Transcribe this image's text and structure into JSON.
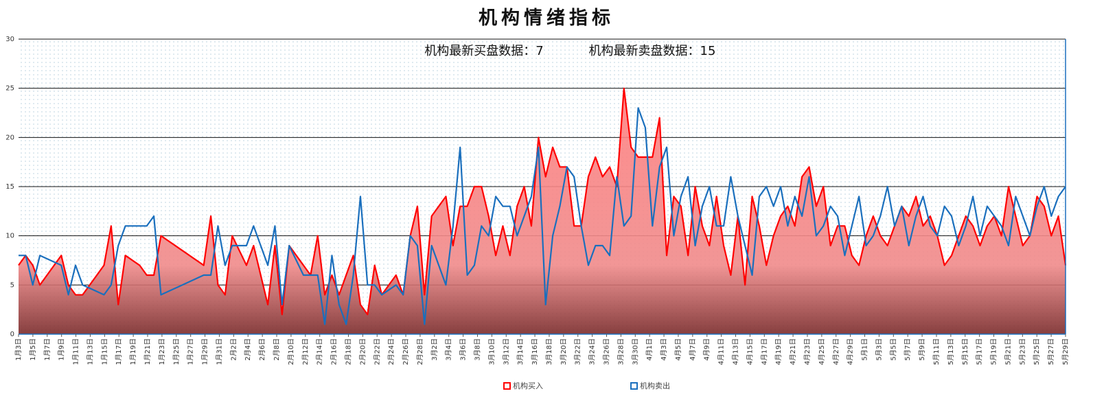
{
  "chart_data": {
    "type": "area",
    "title": "机构情绪指标",
    "annotation_buy": "机构最新买盘数据：7",
    "annotation_sell": "机构最新卖盘数据：15",
    "ylim": [
      0,
      30
    ],
    "yticks": [
      0,
      5,
      10,
      15,
      20,
      25,
      30
    ],
    "grid": true,
    "legend_position": "bottom",
    "x_tick_labels": [
      "1月3日",
      "1月5日",
      "1月7日",
      "1月9日",
      "1月11日",
      "1月13日",
      "1月15日",
      "1月17日",
      "1月19日",
      "1月21日",
      "1月23日",
      "1月25日",
      "1月27日",
      "1月29日",
      "1月31日",
      "2月2日",
      "2月4日",
      "2月6日",
      "2月8日",
      "2月10日",
      "2月12日",
      "2月14日",
      "2月16日",
      "2月18日",
      "2月20日",
      "2月22日",
      "2月24日",
      "2月26日",
      "2月28日",
      "3月2日",
      "3月4日",
      "3月6日",
      "3月8日",
      "3月10日",
      "3月12日",
      "3月14日",
      "3月16日",
      "3月18日",
      "3月20日",
      "3月22日",
      "3月24日",
      "3月26日",
      "3月28日",
      "3月30日",
      "4月1日",
      "4月3日",
      "4月5日",
      "4月7日",
      "4月9日",
      "4月11日",
      "4月13日",
      "4月15日",
      "4月17日",
      "4月19日",
      "4月21日",
      "4月23日",
      "4月25日",
      "4月27日",
      "4月29日",
      "5月1日",
      "5月3日",
      "5月5日",
      "5月7日",
      "5月9日",
      "5月11日",
      "5月13日",
      "5月15日",
      "5月17日",
      "5月19日",
      "5月21日",
      "5月23日",
      "5月25日",
      "5月27日",
      "5月29日"
    ],
    "x": [
      0,
      1,
      2,
      3,
      6,
      7,
      8,
      9,
      12,
      13,
      14,
      15,
      17,
      18,
      19,
      20,
      26,
      27,
      28,
      29,
      30,
      32,
      33,
      35,
      36,
      37,
      38,
      40,
      41,
      42,
      43,
      44,
      45,
      46,
      47,
      48,
      49,
      50,
      51,
      53,
      54,
      55,
      56,
      57,
      58,
      60,
      61,
      62,
      63,
      64,
      65,
      66,
      67,
      68,
      69,
      70,
      71,
      72,
      73,
      74,
      75,
      76,
      77,
      78,
      79,
      80,
      81,
      82,
      83,
      84,
      85,
      86,
      87,
      88,
      89,
      90,
      91,
      92,
      93,
      94,
      95,
      96,
      97,
      98,
      99,
      100,
      101,
      102,
      103,
      104,
      105,
      106,
      107,
      108,
      109,
      110,
      111,
      112,
      113,
      114,
      115,
      116,
      117,
      118,
      119,
      120,
      121,
      122,
      123,
      124,
      125,
      126,
      127,
      128,
      129,
      130,
      131,
      132,
      133,
      134,
      135,
      136,
      137,
      138,
      139,
      140,
      141,
      142,
      143,
      144,
      145,
      146,
      147
    ],
    "series": [
      {
        "name": "机构买入",
        "color": "#ff0000",
        "fill": "#ff8080",
        "values": [
          7,
          8,
          7,
          5,
          8,
          5,
          4,
          4,
          7,
          11,
          3,
          8,
          7,
          6,
          6,
          10,
          7,
          12,
          5,
          4,
          10,
          7,
          9,
          3,
          9,
          2,
          9,
          7,
          6,
          10,
          4,
          6,
          4,
          6,
          8,
          3,
          2,
          7,
          4,
          6,
          4,
          10,
          13,
          4,
          12,
          14,
          9,
          13,
          13,
          15,
          15,
          12,
          8,
          11,
          8,
          13,
          15,
          11,
          20,
          16,
          19,
          17,
          17,
          11,
          11,
          16,
          18,
          16,
          17,
          15,
          25,
          19,
          18,
          18,
          18,
          22,
          8,
          14,
          13,
          8,
          15,
          11,
          9,
          14,
          9,
          6,
          12,
          5,
          14,
          11,
          7,
          10,
          12,
          13,
          11,
          16,
          17,
          13,
          15,
          9,
          11,
          11,
          8,
          7,
          10,
          12,
          10,
          9,
          11,
          13,
          12,
          14,
          11,
          12,
          10,
          7,
          8,
          10,
          12,
          11,
          9,
          11,
          12,
          10,
          15,
          12,
          9,
          10,
          14,
          13,
          10,
          12,
          7
        ]
      },
      {
        "name": "机构卖出",
        "color": "#1a6fbd",
        "values": [
          8,
          8,
          5,
          8,
          7,
          4,
          7,
          5,
          4,
          5,
          9,
          11,
          11,
          11,
          12,
          4,
          6,
          6,
          11,
          7,
          9,
          9,
          11,
          7,
          11,
          3,
          9,
          6,
          6,
          6,
          1,
          8,
          3,
          1,
          6,
          14,
          5,
          5,
          4,
          5,
          4,
          10,
          9,
          1,
          9,
          5,
          11,
          19,
          6,
          7,
          11,
          10,
          14,
          13,
          13,
          10,
          12,
          14,
          19,
          3,
          10,
          13,
          17,
          16,
          11,
          7,
          9,
          9,
          8,
          16,
          11,
          12,
          23,
          21,
          11,
          17,
          19,
          10,
          14,
          16,
          9,
          13,
          15,
          11,
          11,
          16,
          12,
          9,
          6,
          14,
          15,
          13,
          15,
          11,
          14,
          12,
          16,
          10,
          11,
          13,
          12,
          8,
          11,
          14,
          9,
          10,
          12,
          15,
          11,
          13,
          9,
          12,
          14,
          11,
          10,
          13,
          12,
          9,
          11,
          14,
          10,
          13,
          12,
          11,
          9,
          14,
          12,
          10,
          13,
          15,
          12,
          14,
          15
        ]
      }
    ]
  }
}
